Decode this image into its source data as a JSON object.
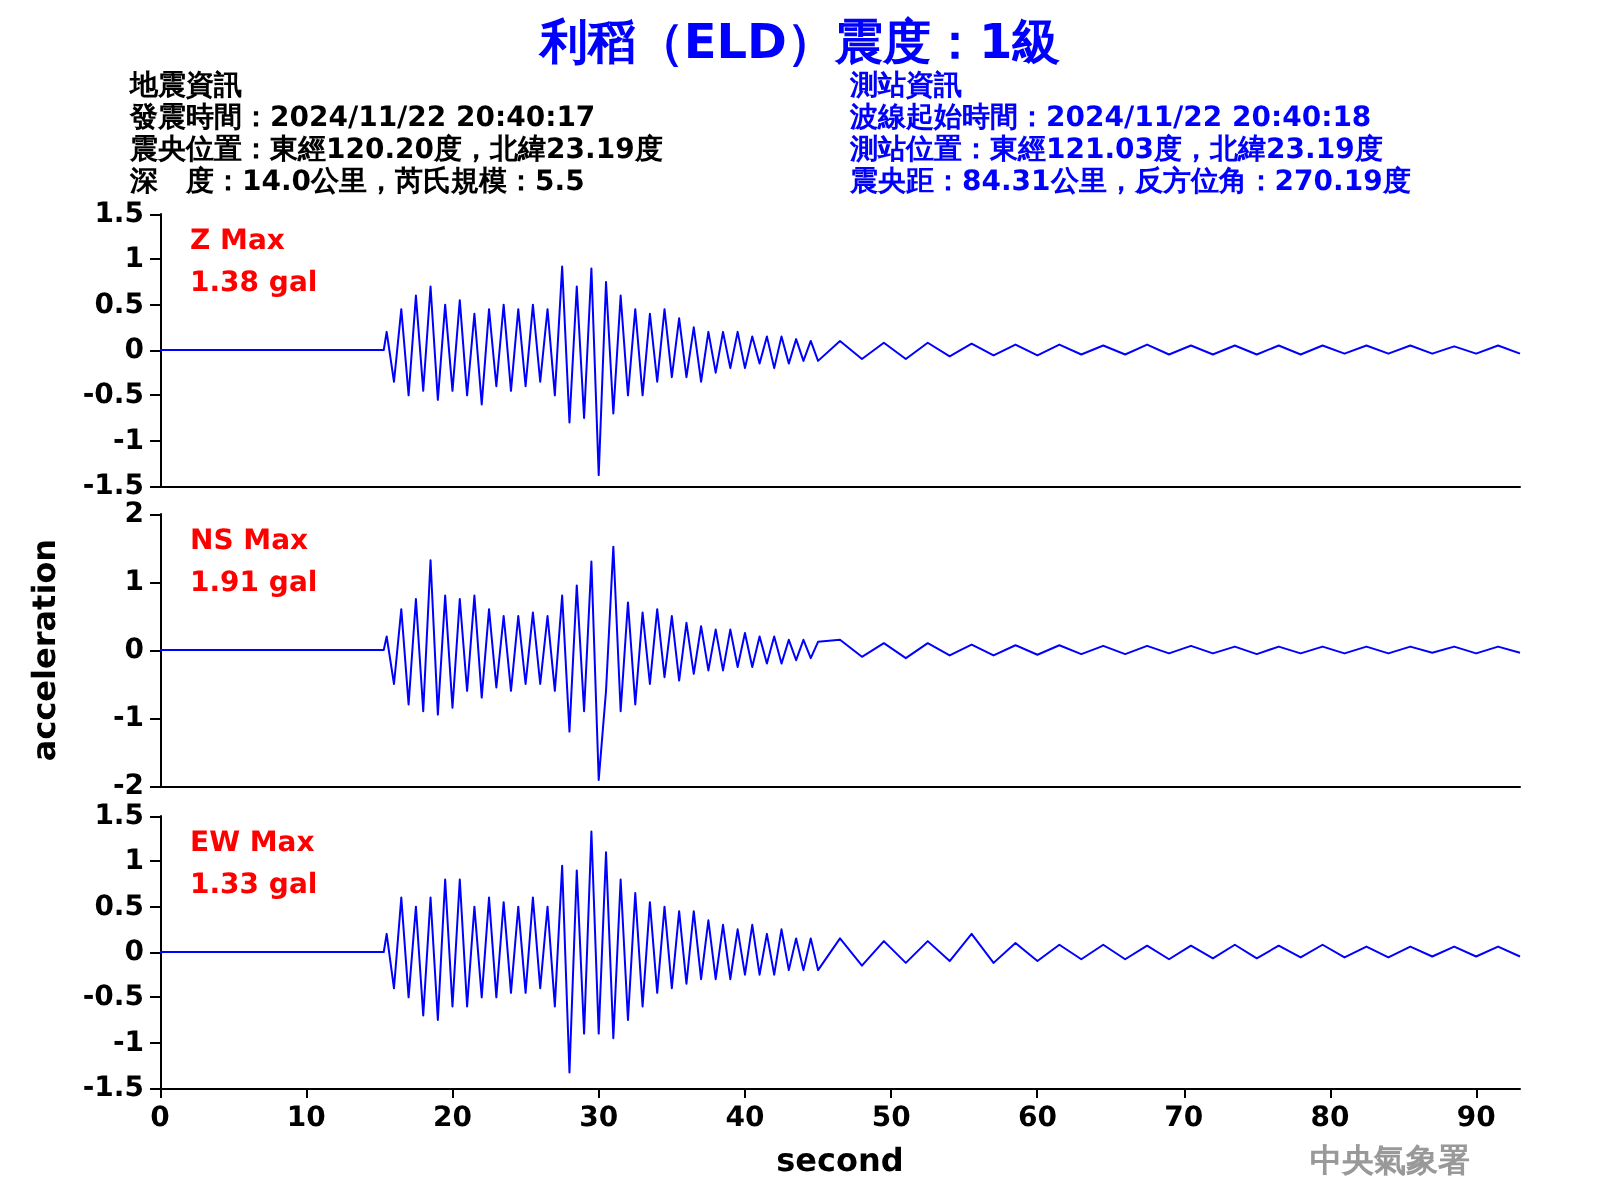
{
  "chart_data": [
    {
      "type": "line",
      "title": "利稻（ELD）震度：1級",
      "annotations": [
        "地震資訊",
        "發震時間：2024/11/22 20:40:17",
        "震央位置：東經120.20度，北緯23.19度",
        "深　度：14.0公里，芮氏規模：5.5",
        "測站資訊",
        "波線起始時間：2024/11/22 20:40:18",
        "測站位置：東經121.03度，北緯23.19度",
        "震央距：84.31公里，反方位角：270.19度",
        "Z Max\n1.38 gal"
      ],
      "color": "#0000ff",
      "marker": "none",
      "line_style": "solid",
      "tick_labels": "y",
      "xlim": [
        0,
        93
      ],
      "xticks": [
        0,
        10,
        20,
        30,
        40,
        50,
        60,
        70,
        80,
        90
      ],
      "ylim": [
        -1.5,
        1.5
      ],
      "yticks": [
        -1.5,
        -1,
        -0.5,
        0,
        0.5,
        1,
        1.5
      ],
      "x": [
        0,
        15.3,
        15.5,
        16,
        16.5,
        17,
        17.5,
        18,
        18.5,
        19,
        19.5,
        20,
        20.5,
        21,
        21.5,
        22,
        22.5,
        23,
        23.5,
        24,
        24.5,
        25,
        25.5,
        26,
        26.5,
        27,
        27.5,
        28,
        28.5,
        29,
        29.5,
        30,
        30.5,
        31,
        31.5,
        32,
        32.5,
        33,
        33.5,
        34,
        34.5,
        35,
        35.5,
        36,
        36.5,
        37,
        37.5,
        38,
        38.5,
        39,
        39.5,
        40,
        40.5,
        41,
        41.5,
        42,
        42.5,
        43,
        43.5,
        44,
        44.5,
        45,
        46.5,
        48,
        49.5,
        51,
        52.5,
        54,
        55.5,
        57,
        58.5,
        60,
        61.5,
        63,
        64.5,
        66,
        67.5,
        69,
        70.5,
        72,
        73.5,
        75,
        76.5,
        78,
        79.5,
        81,
        82.5,
        84,
        85.5,
        87,
        88.5,
        90,
        91.5,
        93
      ],
      "values": [
        0,
        0,
        0.2,
        -0.35,
        0.45,
        -0.5,
        0.6,
        -0.45,
        0.7,
        -0.55,
        0.5,
        -0.45,
        0.55,
        -0.5,
        0.4,
        -0.6,
        0.45,
        -0.4,
        0.5,
        -0.45,
        0.45,
        -0.4,
        0.5,
        -0.35,
        0.45,
        -0.5,
        0.92,
        -0.8,
        0.7,
        -0.75,
        0.9,
        -1.38,
        0.75,
        -0.7,
        0.6,
        -0.5,
        0.45,
        -0.5,
        0.4,
        -0.35,
        0.45,
        -0.3,
        0.35,
        -0.3,
        0.25,
        -0.35,
        0.2,
        -0.25,
        0.2,
        -0.2,
        0.2,
        -0.2,
        0.15,
        -0.15,
        0.15,
        -0.2,
        0.15,
        -0.15,
        0.12,
        -0.12,
        0.1,
        -0.12,
        0.1,
        -0.1,
        0.08,
        -0.1,
        0.08,
        -0.07,
        0.07,
        -0.06,
        0.06,
        -0.06,
        0.06,
        -0.05,
        0.05,
        -0.05,
        0.06,
        -0.05,
        0.05,
        -0.05,
        0.05,
        -0.05,
        0.05,
        -0.05,
        0.05,
        -0.04,
        0.05,
        -0.04,
        0.05,
        -0.04,
        0.04,
        -0.04,
        0.05,
        -0.04
      ]
    },
    {
      "type": "line",
      "ylabel": "acceleration",
      "annotations": [
        "NS Max\n1.91 gal"
      ],
      "color": "#0000ff",
      "marker": "none",
      "line_style": "solid",
      "tick_labels": "y",
      "xlim": [
        0,
        93
      ],
      "xticks": [
        0,
        10,
        20,
        30,
        40,
        50,
        60,
        70,
        80,
        90
      ],
      "ylim": [
        -2,
        2
      ],
      "yticks": [
        -2,
        -1,
        0,
        1,
        2
      ],
      "x": [
        0,
        15.3,
        15.5,
        16,
        16.5,
        17,
        17.5,
        18,
        18.5,
        19,
        19.5,
        20,
        20.5,
        21,
        21.5,
        22,
        22.5,
        23,
        23.5,
        24,
        24.5,
        25,
        25.5,
        26,
        26.5,
        27,
        27.5,
        28,
        28.5,
        29,
        29.5,
        30,
        30.5,
        31,
        31.5,
        32,
        32.5,
        33,
        33.5,
        34,
        34.5,
        35,
        35.5,
        36,
        36.5,
        37,
        37.5,
        38,
        38.5,
        39,
        39.5,
        40,
        40.5,
        41,
        41.5,
        42,
        42.5,
        43,
        43.5,
        44,
        44.5,
        45,
        46.5,
        48,
        49.5,
        51,
        52.5,
        54,
        55.5,
        57,
        58.5,
        60,
        61.5,
        63,
        64.5,
        66,
        67.5,
        69,
        70.5,
        72,
        73.5,
        75,
        76.5,
        78,
        79.5,
        81,
        82.5,
        84,
        85.5,
        87,
        88.5,
        90,
        91.5,
        93
      ],
      "values": [
        0,
        0,
        0.2,
        -0.5,
        0.6,
        -0.8,
        0.75,
        -0.9,
        1.32,
        -0.95,
        0.8,
        -0.85,
        0.75,
        -0.6,
        0.8,
        -0.7,
        0.6,
        -0.55,
        0.5,
        -0.6,
        0.5,
        -0.5,
        0.55,
        -0.5,
        0.5,
        -0.6,
        0.8,
        -1.2,
        0.95,
        -0.9,
        1.3,
        -1.91,
        -0.6,
        1.52,
        -0.9,
        0.7,
        -0.8,
        0.55,
        -0.5,
        0.6,
        -0.4,
        0.5,
        -0.45,
        0.4,
        -0.35,
        0.35,
        -0.3,
        0.3,
        -0.3,
        0.3,
        -0.25,
        0.25,
        -0.25,
        0.2,
        -0.2,
        0.2,
        -0.2,
        0.15,
        -0.15,
        0.15,
        -0.12,
        0.12,
        0.15,
        -0.1,
        0.1,
        -0.12,
        0.1,
        -0.08,
        0.08,
        -0.08,
        0.07,
        -0.07,
        0.07,
        -0.06,
        0.06,
        -0.06,
        0.06,
        -0.05,
        0.06,
        -0.05,
        0.05,
        -0.06,
        0.05,
        -0.05,
        0.05,
        -0.05,
        0.05,
        -0.05,
        0.05,
        -0.04,
        0.05,
        -0.05,
        0.05,
        -0.04
      ]
    },
    {
      "type": "line",
      "xlabel": "second",
      "annotations": [
        "EW Max\n1.33 gal",
        "中央氣象署"
      ],
      "color": "#0000ff",
      "marker": "none",
      "line_style": "solid",
      "xlim": [
        0,
        93
      ],
      "xticks": [
        0,
        10,
        20,
        30,
        40,
        50,
        60,
        70,
        80,
        90
      ],
      "ylim": [
        -1.5,
        1.5
      ],
      "yticks": [
        -1.5,
        -1,
        -0.5,
        0,
        0.5,
        1,
        1.5
      ],
      "x": [
        0,
        15.3,
        15.5,
        16,
        16.5,
        17,
        17.5,
        18,
        18.5,
        19,
        19.5,
        20,
        20.5,
        21,
        21.5,
        22,
        22.5,
        23,
        23.5,
        24,
        24.5,
        25,
        25.5,
        26,
        26.5,
        27,
        27.5,
        28,
        28.5,
        29,
        29.5,
        30,
        30.5,
        31,
        31.5,
        32,
        32.5,
        33,
        33.5,
        34,
        34.5,
        35,
        35.5,
        36,
        36.5,
        37,
        37.5,
        38,
        38.5,
        39,
        39.5,
        40,
        40.5,
        41,
        41.5,
        42,
        42.5,
        43,
        43.5,
        44,
        44.5,
        45,
        46.5,
        48,
        49.5,
        51,
        52.5,
        54,
        55.5,
        57,
        58.5,
        60,
        61.5,
        63,
        64.5,
        66,
        67.5,
        69,
        70.5,
        72,
        73.5,
        75,
        76.5,
        78,
        79.5,
        81,
        82.5,
        84,
        85.5,
        87,
        88.5,
        90,
        91.5,
        93
      ],
      "values": [
        0,
        0,
        0.2,
        -0.4,
        0.6,
        -0.5,
        0.5,
        -0.7,
        0.6,
        -0.75,
        0.8,
        -0.6,
        0.8,
        -0.6,
        0.5,
        -0.5,
        0.6,
        -0.5,
        0.55,
        -0.45,
        0.5,
        -0.45,
        0.6,
        -0.4,
        0.5,
        -0.6,
        0.95,
        -1.33,
        0.9,
        -0.9,
        1.33,
        -0.9,
        1.1,
        -0.95,
        0.8,
        -0.75,
        0.65,
        -0.6,
        0.55,
        -0.45,
        0.5,
        -0.4,
        0.45,
        -0.35,
        0.45,
        -0.3,
        0.35,
        -0.3,
        0.3,
        -0.3,
        0.25,
        -0.25,
        0.3,
        -0.25,
        0.2,
        -0.25,
        0.25,
        -0.2,
        0.15,
        -0.2,
        0.15,
        -0.2,
        0.15,
        -0.15,
        0.12,
        -0.12,
        0.12,
        -0.1,
        0.2,
        -0.12,
        0.1,
        -0.1,
        0.08,
        -0.08,
        0.08,
        -0.08,
        0.07,
        -0.08,
        0.07,
        -0.07,
        0.08,
        -0.07,
        0.07,
        -0.06,
        0.08,
        -0.06,
        0.06,
        -0.06,
        0.06,
        -0.05,
        0.06,
        -0.05,
        0.06,
        -0.05
      ]
    }
  ]
}
